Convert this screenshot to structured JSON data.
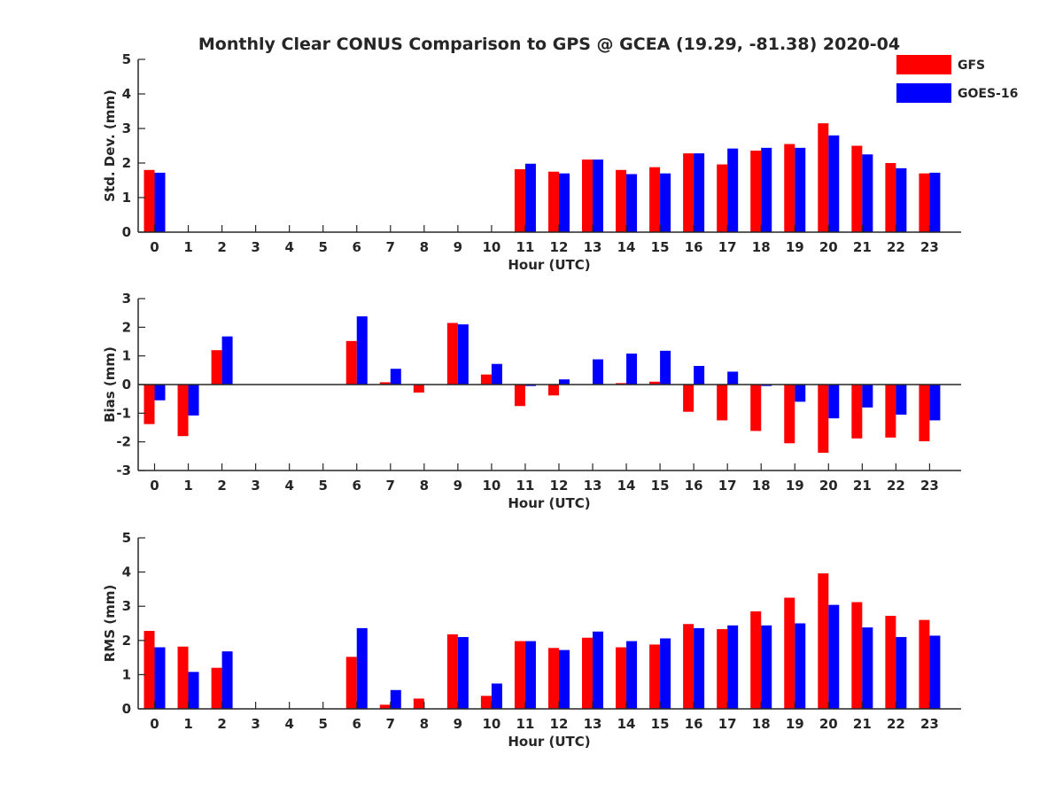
{
  "figure": {
    "title": "Monthly Clear CONUS Comparison to GPS @ GCEA (19.29, -81.38) 2020-04"
  },
  "legend": {
    "placement": "top-right",
    "entries": [
      {
        "name": "GFS",
        "color": "#ff0000"
      },
      {
        "name": "GOES-16",
        "color": "#0000ff"
      }
    ]
  },
  "chart_data": [
    {
      "type": "bar",
      "ylabel": "Std. Dev. (mm)",
      "xlabel": "Hour (UTC)",
      "ylim": [
        0,
        5
      ],
      "yticks": [
        0,
        1,
        2,
        3,
        4,
        5
      ],
      "categories": [
        "0",
        "1",
        "2",
        "3",
        "4",
        "5",
        "6",
        "7",
        "8",
        "9",
        "10",
        "11",
        "12",
        "13",
        "14",
        "15",
        "16",
        "17",
        "18",
        "19",
        "20",
        "21",
        "22",
        "23"
      ],
      "series": [
        {
          "name": "GFS",
          "color": "#ff0000",
          "values": [
            1.8,
            0,
            0,
            0,
            0,
            0,
            0,
            0,
            0,
            0,
            0,
            1.82,
            1.75,
            2.1,
            1.8,
            1.88,
            2.28,
            1.96,
            2.36,
            2.55,
            3.15,
            2.5,
            2.0,
            1.7
          ]
        },
        {
          "name": "GOES-16",
          "color": "#0000ff",
          "values": [
            1.72,
            0,
            0,
            0,
            0,
            0,
            0,
            0,
            0,
            0,
            0,
            1.98,
            1.7,
            2.1,
            1.68,
            1.7,
            2.28,
            2.42,
            2.44,
            2.44,
            2.8,
            2.25,
            1.85,
            1.72
          ]
        }
      ]
    },
    {
      "type": "bar",
      "ylabel": "Bias (mm)",
      "xlabel": "Hour (UTC)",
      "ylim": [
        -3,
        3
      ],
      "yticks": [
        -3,
        -2,
        -1,
        0,
        1,
        2,
        3
      ],
      "categories": [
        "0",
        "1",
        "2",
        "3",
        "4",
        "5",
        "6",
        "7",
        "8",
        "9",
        "10",
        "11",
        "12",
        "13",
        "14",
        "15",
        "16",
        "17",
        "18",
        "19",
        "20",
        "21",
        "22",
        "23"
      ],
      "series": [
        {
          "name": "GFS",
          "color": "#ff0000",
          "values": [
            -1.38,
            -1.8,
            1.2,
            0,
            0,
            0,
            1.52,
            0.08,
            -0.28,
            2.15,
            0.35,
            -0.75,
            -0.38,
            0,
            0.05,
            0.1,
            -0.95,
            -1.25,
            -1.62,
            -2.05,
            -2.38,
            -1.88,
            -1.85,
            -1.98
          ]
        },
        {
          "name": "GOES-16",
          "color": "#0000ff",
          "values": [
            -0.55,
            -1.08,
            1.68,
            0,
            0,
            0,
            2.38,
            0.55,
            0,
            2.1,
            0.72,
            -0.05,
            0.18,
            0.88,
            1.08,
            1.18,
            0.65,
            0.45,
            -0.05,
            -0.6,
            -1.18,
            -0.8,
            -1.05,
            -1.25
          ]
        }
      ]
    },
    {
      "type": "bar",
      "ylabel": "RMS (mm)",
      "xlabel": "Hour (UTC)",
      "ylim": [
        0,
        5
      ],
      "yticks": [
        0,
        1,
        2,
        3,
        4,
        5
      ],
      "categories": [
        "0",
        "1",
        "2",
        "3",
        "4",
        "5",
        "6",
        "7",
        "8",
        "9",
        "10",
        "11",
        "12",
        "13",
        "14",
        "15",
        "16",
        "17",
        "18",
        "19",
        "20",
        "21",
        "22",
        "23"
      ],
      "series": [
        {
          "name": "GFS",
          "color": "#ff0000",
          "values": [
            2.28,
            1.82,
            1.2,
            0,
            0,
            0,
            1.52,
            0.12,
            0.3,
            2.18,
            0.38,
            1.98,
            1.78,
            2.08,
            1.8,
            1.88,
            2.48,
            2.33,
            2.85,
            3.25,
            3.96,
            3.12,
            2.72,
            2.6
          ]
        },
        {
          "name": "GOES-16",
          "color": "#0000ff",
          "values": [
            1.8,
            1.08,
            1.68,
            0,
            0,
            0,
            2.36,
            0.55,
            0,
            2.1,
            0.74,
            1.98,
            1.72,
            2.26,
            1.98,
            2.06,
            2.36,
            2.44,
            2.44,
            2.5,
            3.04,
            2.38,
            2.1,
            2.14
          ]
        }
      ]
    }
  ]
}
